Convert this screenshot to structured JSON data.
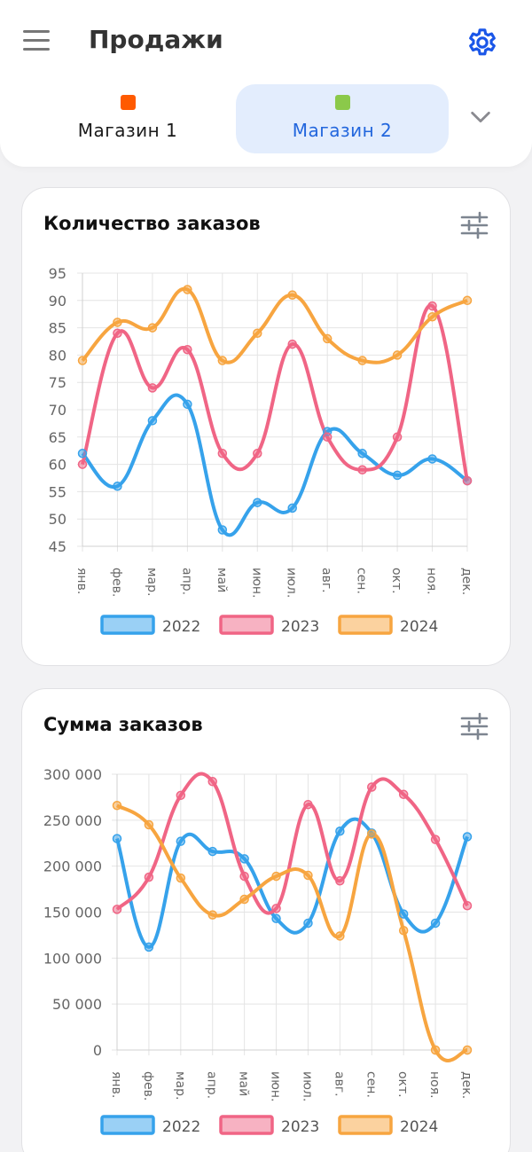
{
  "app": {
    "title": "Продажи"
  },
  "icons": {
    "menu": "menu-icon",
    "settings": "gear-icon",
    "dropdown": "chevron-down-icon",
    "filter": "sliders-icon"
  },
  "colors": {
    "accent": "#2266dd",
    "store1": "#ff5a00",
    "store2": "#8bc94a"
  },
  "stores": [
    {
      "label": "Магазин 1",
      "color": "#ff5a00",
      "active": false
    },
    {
      "label": "Магазин 2",
      "color": "#8bc94a",
      "active": true
    }
  ],
  "charts": [
    {
      "title": "Количество заказов",
      "chart_data": {
        "type": "line",
        "categories": [
          "янв.",
          "фев.",
          "мар.",
          "апр.",
          "май",
          "июн.",
          "июл.",
          "авг.",
          "сен.",
          "окт.",
          "ноя.",
          "дек."
        ],
        "y_ticks": [
          "95",
          "90",
          "85",
          "80",
          "75",
          "70",
          "65",
          "60",
          "55",
          "50",
          "45"
        ],
        "ylim": [
          45,
          95
        ],
        "grid": true,
        "legend_position": "bottom",
        "series": [
          {
            "name": "2022",
            "color": "#36a2eb",
            "values": [
              62,
              56,
              68,
              71,
              48,
              53,
              52,
              66,
              62,
              58,
              61,
              57
            ]
          },
          {
            "name": "2023",
            "color": "#f06585",
            "values": [
              60,
              84,
              74,
              81,
              62,
              62,
              82,
              65,
              59,
              65,
              89,
              57
            ]
          },
          {
            "name": "2024",
            "color": "#f7a540",
            "values": [
              79,
              86,
              85,
              92,
              79,
              84,
              91,
              83,
              79,
              80,
              87,
              90
            ]
          }
        ]
      }
    },
    {
      "title": "Сумма заказов",
      "chart_data": {
        "type": "line",
        "categories": [
          "янв.",
          "фев.",
          "мар.",
          "апр.",
          "май",
          "июн.",
          "июл.",
          "авг.",
          "сен.",
          "окт.",
          "ноя.",
          "дек."
        ],
        "y_ticks": [
          "300 000",
          "250 000",
          "200 000",
          "150 000",
          "100 000",
          "50 000",
          "0"
        ],
        "ylim": [
          0,
          300000
        ],
        "grid": true,
        "legend_position": "bottom",
        "series": [
          {
            "name": "2022",
            "color": "#36a2eb",
            "values": [
              230000,
              112000,
              227000,
              216000,
              208000,
              143000,
              138000,
              238000,
              236000,
              148000,
              138000,
              232000
            ]
          },
          {
            "name": "2023",
            "color": "#f06585",
            "values": [
              153000,
              188000,
              277000,
              292000,
              189000,
              154000,
              267000,
              184000,
              286000,
              278000,
              229000,
              157000
            ]
          },
          {
            "name": "2024",
            "color": "#f7a540",
            "values": [
              266000,
              245000,
              187000,
              147000,
              164000,
              189000,
              190000,
              124000,
              235000,
              130000,
              0,
              0
            ]
          }
        ]
      }
    }
  ]
}
